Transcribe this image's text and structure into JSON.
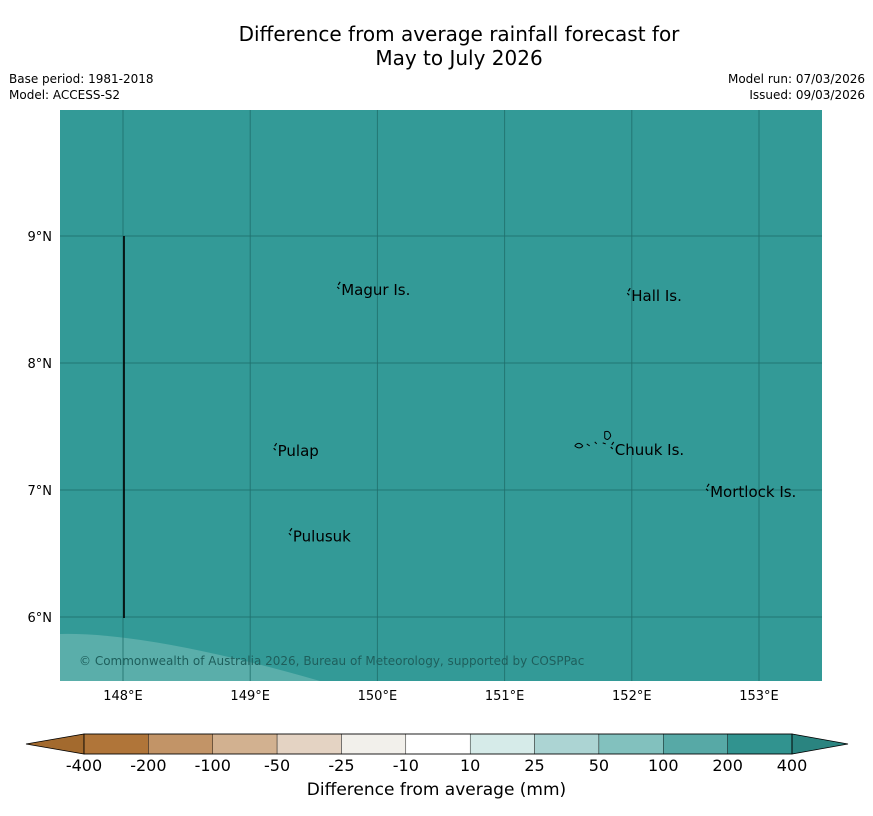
{
  "title_line1": "Difference from average rainfall forecast for",
  "title_line2": "May to July 2026",
  "meta": {
    "base_period": "Base period: 1981-2018",
    "model": "Model: ACCESS-S2",
    "model_run": "Model run: 07/03/2026",
    "issued": "Issued: 09/03/2026"
  },
  "map": {
    "background_color": "#339a97",
    "lighter_region_color": "#5aaeaa",
    "lon_ticks": [
      "148°E",
      "149°E",
      "150°E",
      "151°E",
      "152°E",
      "153°E"
    ],
    "lat_ticks": [
      "9°N",
      "8°N",
      "7°N",
      "6°N"
    ],
    "places": [
      {
        "name": "Magur Is.",
        "lon": 149.7,
        "lat": 8.56
      },
      {
        "name": "Hall Is.",
        "lon": 151.98,
        "lat": 8.51
      },
      {
        "name": "Pulap",
        "lon": 149.2,
        "lat": 7.29
      },
      {
        "name": "Chuuk Is.",
        "lon": 151.85,
        "lat": 7.3
      },
      {
        "name": "Mortlock Is.",
        "lon": 152.6,
        "lat": 6.97
      },
      {
        "name": "Pulusuk",
        "lon": 149.32,
        "lat": 6.62
      }
    ],
    "copyright": "© Commonwealth of Australia 2026, Bureau of Meteorology, supported by COSPPac"
  },
  "colorbar": {
    "tick_labels": [
      "-400",
      "-200",
      "-100",
      "-50",
      "-25",
      "-10",
      "10",
      "25",
      "50",
      "100",
      "200",
      "400"
    ],
    "colors": [
      "#a36a2e",
      "#b07539",
      "#c29467",
      "#d2b190",
      "#e4d3c3",
      "#f2f0eb",
      "#ffffff",
      "#d6ebe9",
      "#acd4d3",
      "#82c1be",
      "#57a9a6",
      "#31938f",
      "#2a8480"
    ],
    "xlabel": "Difference from average (mm)"
  }
}
